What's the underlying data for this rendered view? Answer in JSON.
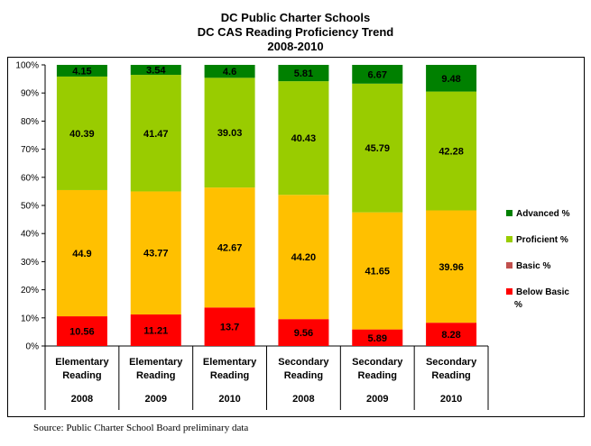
{
  "title_lines": [
    "DC Public Charter Schools",
    "DC CAS Reading Proficiency Trend",
    "2008-2010"
  ],
  "source_note": "Source: Public Charter School Board preliminary data",
  "chart_data": {
    "type": "bar",
    "stacked": true,
    "title": "DC Public Charter Schools DC CAS Reading Proficiency Trend 2008-2010",
    "categories": [
      {
        "label_lines": [
          "Elementary",
          "Reading"
        ],
        "year": "2008"
      },
      {
        "label_lines": [
          "Elementary",
          "Reading"
        ],
        "year": "2009"
      },
      {
        "label_lines": [
          "Elementary",
          "Reading"
        ],
        "year": "2010"
      },
      {
        "label_lines": [
          "Secondary",
          "Reading"
        ],
        "year": "2008"
      },
      {
        "label_lines": [
          "Secondary",
          "Reading"
        ],
        "year": "2009"
      },
      {
        "label_lines": [
          "Secondary",
          "Reading"
        ],
        "year": "2010"
      }
    ],
    "series": [
      {
        "name": "Below Basic %",
        "color": "#ff0000",
        "values": [
          10.56,
          11.21,
          13.7,
          9.56,
          5.89,
          8.28
        ],
        "labels": [
          "10.56",
          "11.21",
          "13.7",
          "9.56",
          "5.89",
          "8.28"
        ]
      },
      {
        "name": "Basic %",
        "color": "#ffc000",
        "values": [
          44.9,
          43.77,
          42.67,
          44.2,
          41.65,
          39.96
        ],
        "labels": [
          "44.9",
          "43.77",
          "42.67",
          "44.20",
          "41.65",
          "39.96"
        ]
      },
      {
        "name": "Proficient %",
        "color": "#99cc00",
        "values": [
          40.39,
          41.47,
          39.03,
          40.43,
          45.79,
          42.28
        ],
        "labels": [
          "40.39",
          "41.47",
          "39.03",
          "40.43",
          "45.79",
          "42.28"
        ]
      },
      {
        "name": "Advanced %",
        "color": "#008000",
        "values": [
          4.15,
          3.54,
          4.6,
          5.81,
          6.67,
          9.48
        ],
        "labels": [
          "4.15",
          "3.54",
          "4.6",
          "5.81",
          "6.67",
          "9.48"
        ]
      }
    ],
    "legend": {
      "placement": "right",
      "entries": [
        {
          "label": "Advanced %",
          "color": "#008000"
        },
        {
          "label": "Proficient %",
          "color": "#99cc00"
        },
        {
          "label": "Basic %",
          "color": "#c0504d"
        },
        {
          "label": "Below Basic %",
          "color": "#ff0000"
        }
      ]
    },
    "y_ticks": [
      "0%",
      "10%",
      "20%",
      "30%",
      "40%",
      "50%",
      "60%",
      "70%",
      "80%",
      "90%",
      "100%"
    ],
    "ylim": [
      0,
      100
    ],
    "grid": false
  }
}
